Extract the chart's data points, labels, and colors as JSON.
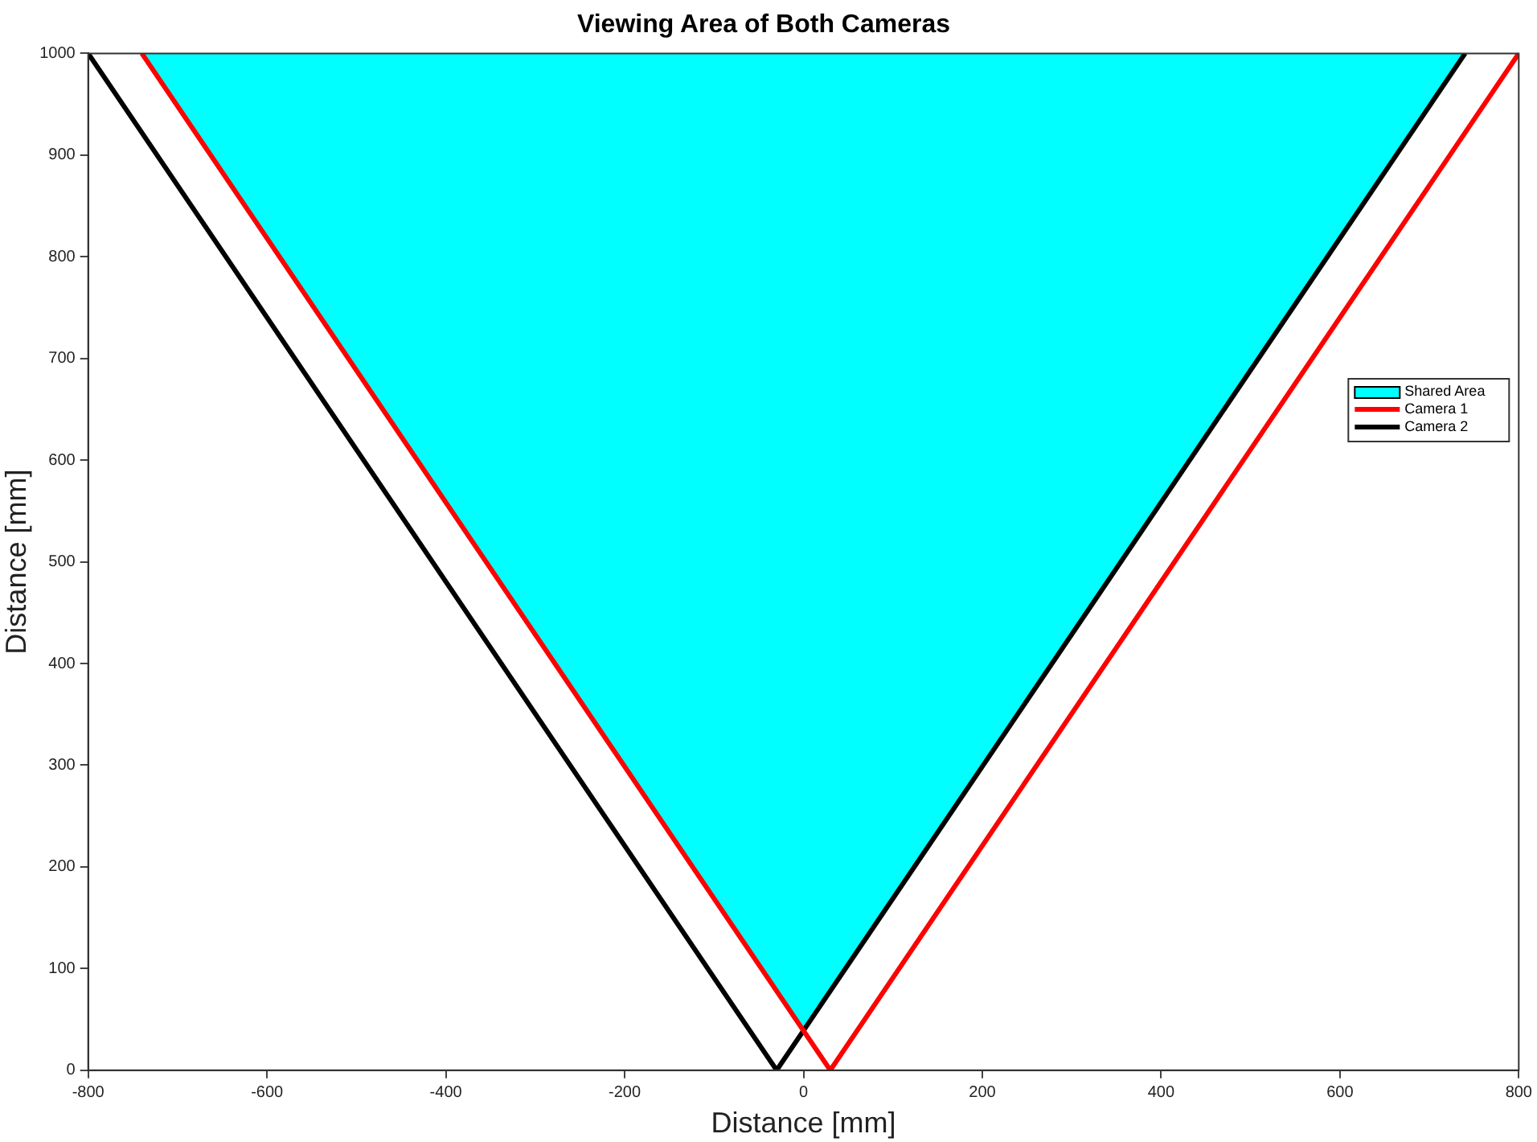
{
  "chart_data": {
    "type": "line",
    "title": "Viewing Area of Both Cameras",
    "xlabel": "Distance [mm]",
    "ylabel": "Distance [mm]",
    "xlim": [
      -800,
      800
    ],
    "xticks": [
      -800,
      -600,
      -400,
      -200,
      0,
      200,
      400,
      600,
      800
    ],
    "ylim": [
      0,
      1000
    ],
    "yticks": [
      0,
      100,
      200,
      300,
      400,
      500,
      600,
      700,
      800,
      900,
      1000
    ],
    "legend": "right",
    "grid": false,
    "marker": "none",
    "line_style": "solid",
    "series": [
      {
        "name": "Shared Area",
        "type": "area",
        "color": "#00ffff",
        "x": [
          -740,
          0,
          740
        ],
        "values": [
          1000,
          40,
          1000
        ]
      },
      {
        "name": "Camera 1",
        "type": "line",
        "color": "#ff0000",
        "x": [
          -740,
          30,
          800
        ],
        "values": [
          1000,
          0,
          1000
        ]
      },
      {
        "name": "Camera 2",
        "type": "line",
        "color": "#000000",
        "x": [
          -800,
          -30,
          740
        ],
        "values": [
          1000,
          0,
          1000
        ]
      }
    ]
  }
}
